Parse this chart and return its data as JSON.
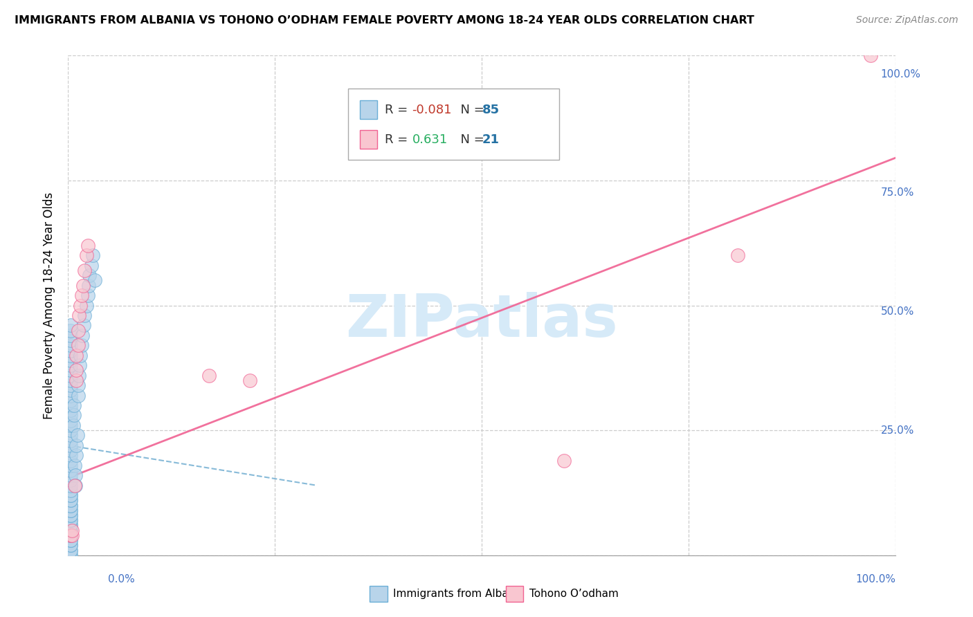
{
  "title": "IMMIGRANTS FROM ALBANIA VS TOHONO O’ODHAM FEMALE POVERTY AMONG 18-24 YEAR OLDS CORRELATION CHART",
  "source": "Source: ZipAtlas.com",
  "ylabel": "Female Poverty Among 18-24 Year Olds",
  "xlim": [
    0,
    1.0
  ],
  "ylim": [
    0,
    1.0
  ],
  "color_albania_fill": "#b8d4ea",
  "color_albania_edge": "#6aaed6",
  "color_tohono_fill": "#f9c6d0",
  "color_tohono_edge": "#f06292",
  "color_albania_trend": "#7ab3d4",
  "color_tohono_trend": "#f06292",
  "watermark_color": "#d6eaf8",
  "albania_x": [
    0.003,
    0.003,
    0.003,
    0.003,
    0.003,
    0.003,
    0.003,
    0.003,
    0.003,
    0.003,
    0.003,
    0.003,
    0.003,
    0.003,
    0.003,
    0.003,
    0.003,
    0.003,
    0.003,
    0.003,
    0.003,
    0.003,
    0.003,
    0.003,
    0.003,
    0.003,
    0.003,
    0.003,
    0.003,
    0.003,
    0.003,
    0.003,
    0.003,
    0.003,
    0.003,
    0.003,
    0.003,
    0.003,
    0.003,
    0.003,
    0.003,
    0.003,
    0.003,
    0.003,
    0.003,
    0.003,
    0.003,
    0.003,
    0.003,
    0.003,
    0.003,
    0.003,
    0.003,
    0.003,
    0.003,
    0.003,
    0.003,
    0.003,
    0.003,
    0.003,
    0.006,
    0.007,
    0.007,
    0.008,
    0.009,
    0.009,
    0.01,
    0.01,
    0.011,
    0.012,
    0.012,
    0.013,
    0.014,
    0.015,
    0.016,
    0.017,
    0.019,
    0.02,
    0.022,
    0.024,
    0.025,
    0.026,
    0.028,
    0.03,
    0.032
  ],
  "albania_y": [
    0.0,
    0.0,
    0.01,
    0.01,
    0.02,
    0.02,
    0.03,
    0.03,
    0.04,
    0.04,
    0.05,
    0.05,
    0.06,
    0.06,
    0.07,
    0.07,
    0.08,
    0.08,
    0.09,
    0.09,
    0.1,
    0.1,
    0.11,
    0.11,
    0.12,
    0.12,
    0.13,
    0.14,
    0.15,
    0.16,
    0.17,
    0.18,
    0.19,
    0.2,
    0.21,
    0.22,
    0.23,
    0.24,
    0.25,
    0.26,
    0.27,
    0.28,
    0.29,
    0.3,
    0.31,
    0.32,
    0.33,
    0.34,
    0.35,
    0.36,
    0.37,
    0.38,
    0.39,
    0.4,
    0.41,
    0.42,
    0.43,
    0.44,
    0.45,
    0.46,
    0.26,
    0.28,
    0.3,
    0.18,
    0.16,
    0.14,
    0.2,
    0.22,
    0.24,
    0.32,
    0.34,
    0.36,
    0.38,
    0.4,
    0.42,
    0.44,
    0.46,
    0.48,
    0.5,
    0.52,
    0.54,
    0.56,
    0.58,
    0.6,
    0.55
  ],
  "tohono_x": [
    0.003,
    0.005,
    0.005,
    0.008,
    0.01,
    0.01,
    0.01,
    0.012,
    0.012,
    0.013,
    0.015,
    0.016,
    0.018,
    0.02,
    0.022,
    0.024,
    0.17,
    0.22,
    0.6,
    0.81,
    0.97
  ],
  "tohono_y": [
    0.04,
    0.04,
    0.05,
    0.14,
    0.35,
    0.37,
    0.4,
    0.42,
    0.45,
    0.48,
    0.5,
    0.52,
    0.54,
    0.57,
    0.6,
    0.62,
    0.36,
    0.35,
    0.19,
    0.6,
    1.0
  ],
  "albania_trend_x": [
    0.0,
    0.3
  ],
  "albania_trend_y": [
    0.22,
    0.14
  ],
  "tohono_trend_x": [
    0.0,
    1.0
  ],
  "tohono_trend_y": [
    0.155,
    0.795
  ],
  "legend_r1": "-0.081",
  "legend_n1": "85",
  "legend_r2": "0.631",
  "legend_n2": "21",
  "label_albania": "Immigrants from Albania",
  "label_tohono": "Tohono O’odham",
  "ytick_labels": [
    "25.0%",
    "50.0%",
    "75.0%",
    "100.0%"
  ],
  "ytick_vals": [
    0.25,
    0.5,
    0.75,
    1.0
  ],
  "xtick_labels_bottom": [
    "0.0%",
    "100.0%"
  ],
  "xtick_vals_bottom": [
    0.0,
    1.0
  ]
}
